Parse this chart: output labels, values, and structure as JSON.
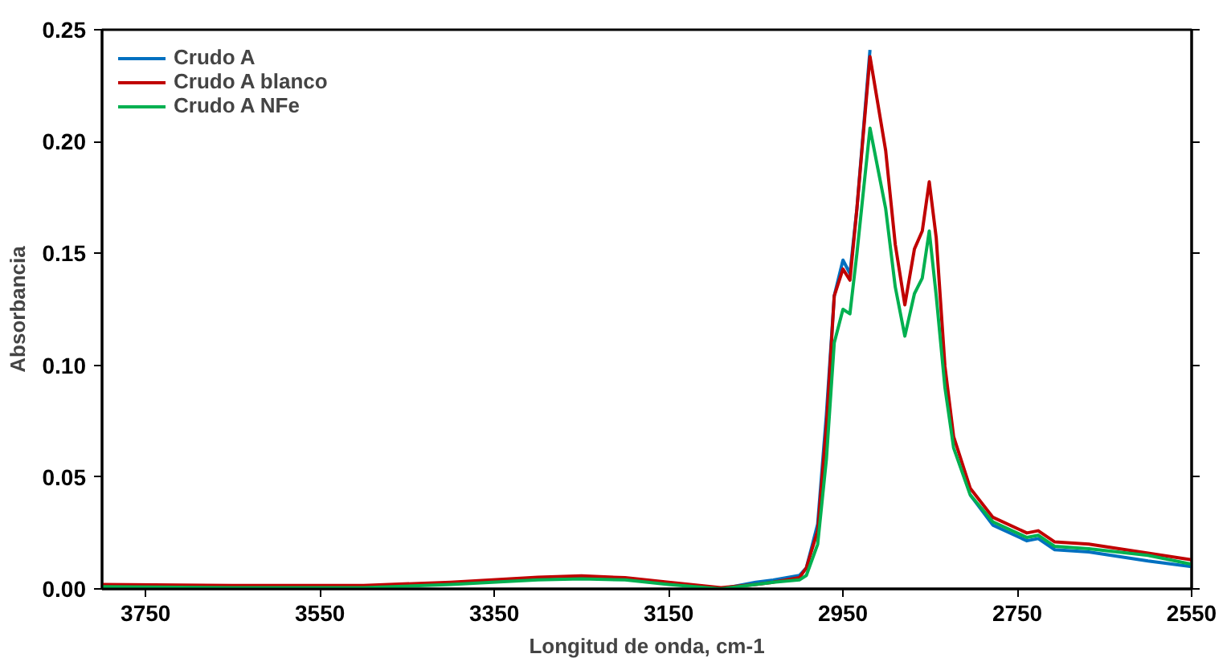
{
  "chart_data": {
    "type": "line",
    "xlabel": "Longitud de onda, cm-1",
    "ylabel": "Absorbancia",
    "x": [
      3800,
      3650,
      3500,
      3400,
      3300,
      3250,
      3200,
      3150,
      3090,
      3050,
      3030,
      3000,
      2992,
      2979,
      2969,
      2960,
      2950,
      2942,
      2934,
      2919,
      2901,
      2890,
      2879,
      2868,
      2859,
      2851,
      2843,
      2833,
      2823,
      2804,
      2778,
      2739,
      2726,
      2707,
      2668,
      2600,
      2550
    ],
    "series": [
      {
        "name": "Crudo A",
        "color": "#0070c0",
        "values": [
          null,
          null,
          null,
          null,
          null,
          null,
          null,
          null,
          0.0,
          0.003,
          0.004,
          0.006,
          0.0094,
          0.029,
          0.078,
          0.131,
          0.147,
          0.141,
          0.17,
          0.241,
          null,
          null,
          null,
          null,
          null,
          null,
          null,
          null,
          null,
          0.042,
          0.0285,
          0.0215,
          0.0225,
          0.0175,
          0.0165,
          0.0125,
          0.01
        ]
      },
      {
        "name": "Crudo A blanco",
        "color": "#c00000",
        "values": [
          0.002,
          0.0015,
          0.0015,
          0.003,
          0.0052,
          0.0058,
          0.005,
          0.003,
          0.0005,
          0.002,
          0.003,
          0.005,
          0.0094,
          0.026,
          0.073,
          0.131,
          0.143,
          0.138,
          0.17,
          0.238,
          0.196,
          0.154,
          0.127,
          0.152,
          0.16,
          0.182,
          0.157,
          0.0995,
          0.068,
          0.045,
          0.032,
          0.025,
          0.026,
          0.021,
          0.02,
          0.016,
          0.013
        ]
      },
      {
        "name": "Crudo A NFe",
        "color": "#00b050",
        "values": [
          0.001,
          0.0005,
          0.0005,
          0.002,
          0.004,
          0.0045,
          0.004,
          0.002,
          0.0,
          0.002,
          0.003,
          0.004,
          0.006,
          0.02,
          0.058,
          0.11,
          0.125,
          0.123,
          0.15,
          0.206,
          0.17,
          0.135,
          0.113,
          0.132,
          0.139,
          0.16,
          0.131,
          0.09,
          0.063,
          0.042,
          0.03,
          0.023,
          0.024,
          0.019,
          0.018,
          0.015,
          0.011
        ]
      }
    ],
    "xlim": [
      3800,
      2550
    ],
    "xticks": [
      3750,
      3550,
      3350,
      3150,
      2950,
      2750,
      2550
    ],
    "ylim": [
      0,
      0.25
    ],
    "yticks": [
      {
        "value": 0,
        "label": "0.00"
      },
      {
        "value": 0.05,
        "label": "0.05"
      },
      {
        "value": 0.1,
        "label": "0.10"
      },
      {
        "value": 0.15,
        "label": "0.15"
      },
      {
        "value": 0.2,
        "label": "0.20"
      },
      {
        "value": 0.25,
        "label": "0.25"
      }
    ],
    "legend": "top left",
    "grid": false,
    "marker": "none",
    "line_style": "solid"
  }
}
